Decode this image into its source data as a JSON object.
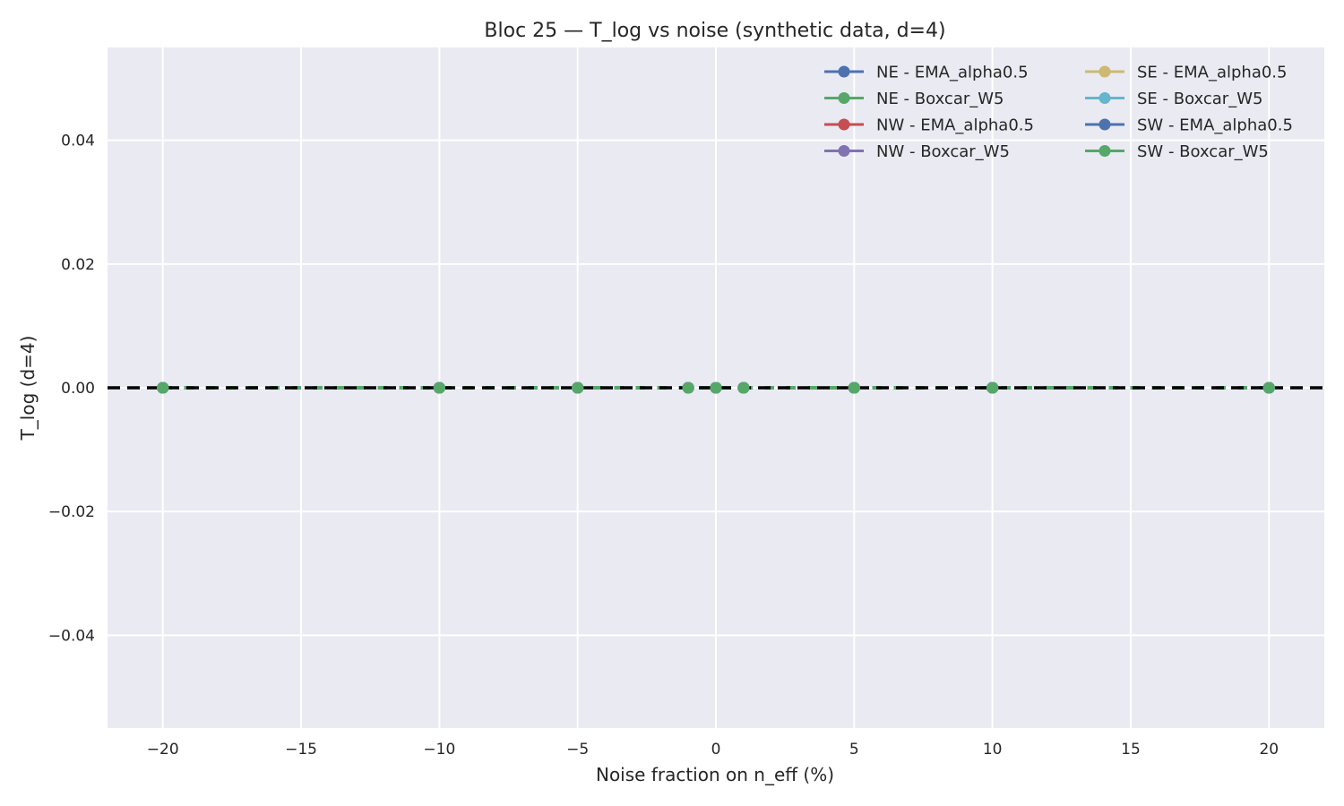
{
  "chart_data": {
    "type": "line",
    "title": "Bloc 25 — T_log vs noise (synthetic data, d=4)",
    "xlabel": "Noise fraction on n_eff (%)",
    "ylabel": "T_log (d=4)",
    "xlim": [
      -22,
      22
    ],
    "ylim": [
      -0.055,
      0.055
    ],
    "xticks": [
      -20,
      -15,
      -10,
      -5,
      0,
      5,
      10,
      15,
      20
    ],
    "xtick_labels": [
      "−20",
      "−15",
      "−10",
      "−5",
      "0",
      "5",
      "10",
      "15",
      "20"
    ],
    "yticks": [
      0.04,
      0.02,
      0.0,
      -0.02,
      -0.04
    ],
    "ytick_labels": [
      "0.04",
      "0.02",
      "0.00",
      "−0.02",
      "−0.04"
    ],
    "grid": true,
    "legend_placement": "top-right",
    "legend_columns": 2,
    "reference_line": {
      "y": 0,
      "style": "dashed",
      "color": "#000000"
    },
    "x": [
      -20,
      -10,
      -5,
      -1,
      0,
      1,
      5,
      10,
      20
    ],
    "series": [
      {
        "name": "NE - EMA_alpha0.5",
        "color": "#4c72b0",
        "values": [
          0,
          0,
          0,
          0,
          0,
          0,
          0,
          0,
          0
        ]
      },
      {
        "name": "NE - Boxcar_W5",
        "color": "#55a868",
        "values": [
          0,
          0,
          0,
          0,
          0,
          0,
          0,
          0,
          0
        ]
      },
      {
        "name": "NW - EMA_alpha0.5",
        "color": "#c44e52",
        "values": [
          0,
          0,
          0,
          0,
          0,
          0,
          0,
          0,
          0
        ]
      },
      {
        "name": "NW - Boxcar_W5",
        "color": "#8172b2",
        "values": [
          0,
          0,
          0,
          0,
          0,
          0,
          0,
          0,
          0
        ]
      },
      {
        "name": "SE - EMA_alpha0.5",
        "color": "#ccb974",
        "values": [
          0,
          0,
          0,
          0,
          0,
          0,
          0,
          0,
          0
        ]
      },
      {
        "name": "SE - Boxcar_W5",
        "color": "#64b5cd",
        "values": [
          0,
          0,
          0,
          0,
          0,
          0,
          0,
          0,
          0
        ]
      },
      {
        "name": "SW - EMA_alpha0.5",
        "color": "#4c72b0",
        "values": [
          0,
          0,
          0,
          0,
          0,
          0,
          0,
          0,
          0
        ]
      },
      {
        "name": "SW - Boxcar_W5",
        "color": "#55a868",
        "values": [
          0,
          0,
          0,
          0,
          0,
          0,
          0,
          0,
          0
        ]
      }
    ],
    "colors": {
      "plot_background": "#eaeaf2",
      "grid": "#ffffff"
    }
  }
}
